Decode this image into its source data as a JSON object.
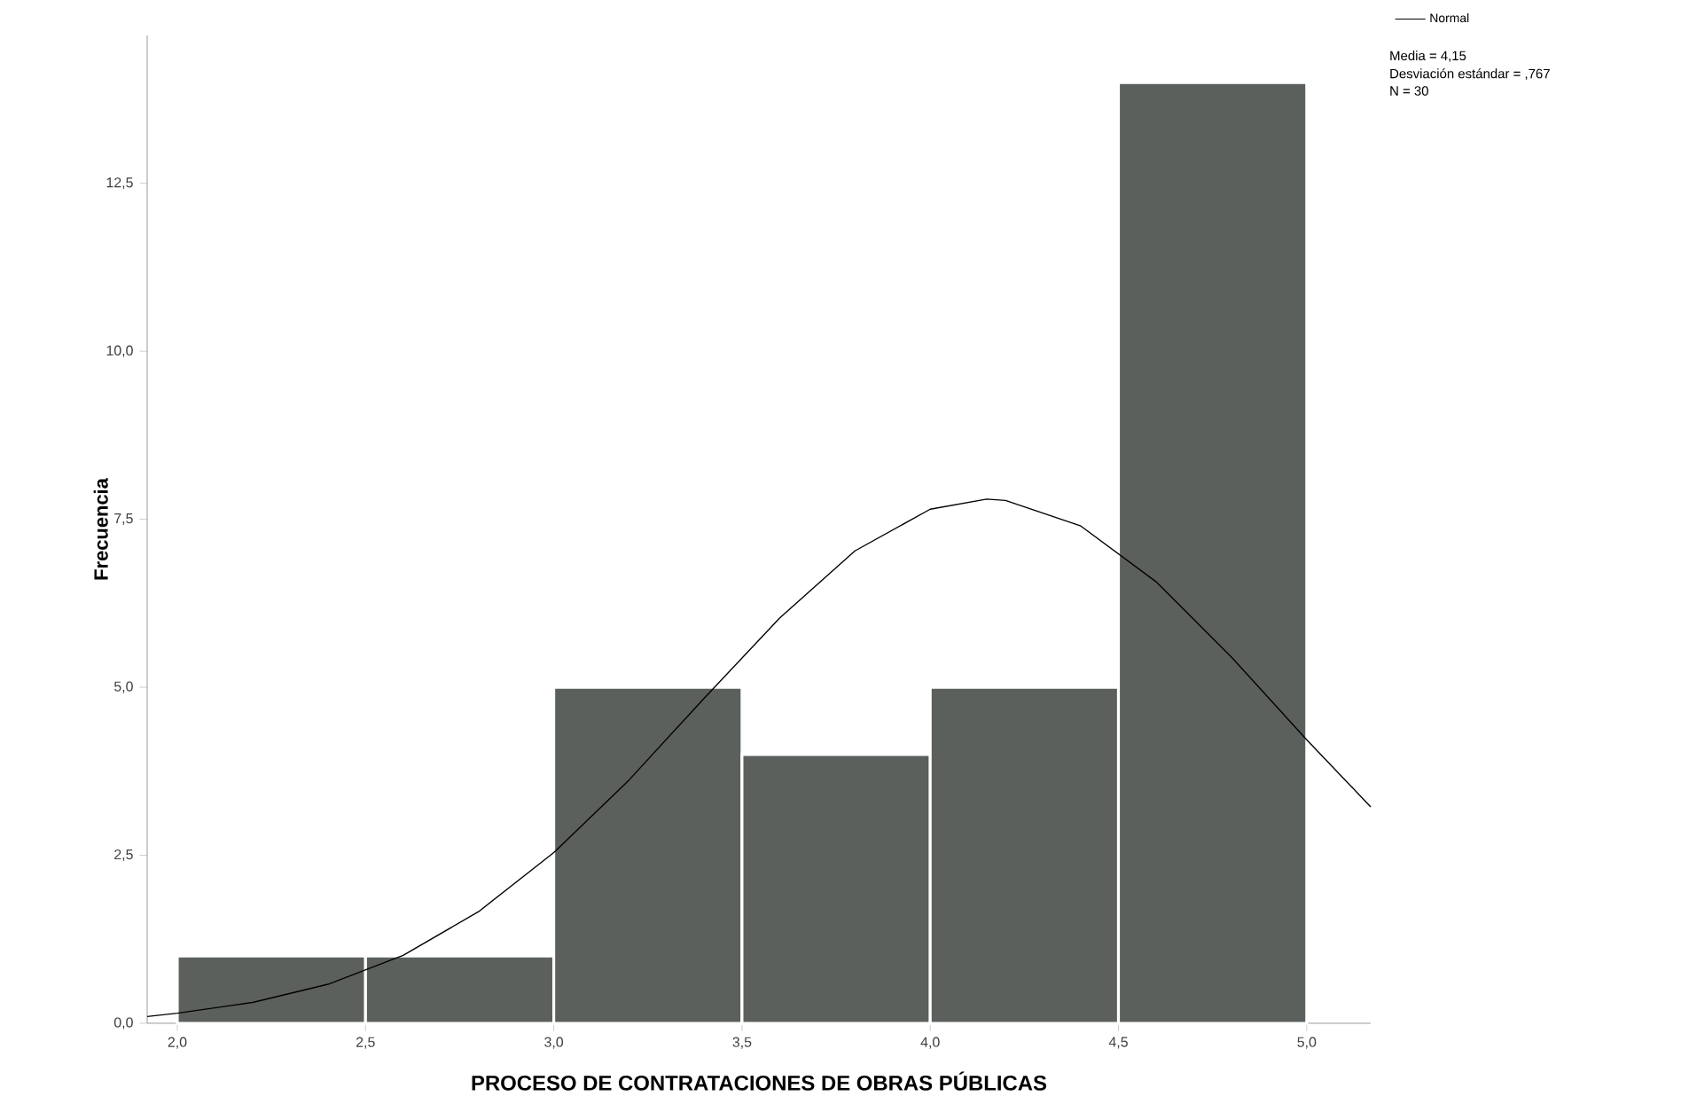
{
  "chart_data": {
    "type": "histogram",
    "xlabel": "PROCESO DE CONTRATACIONES DE OBRAS PÚBLICAS",
    "ylabel": "Frecuencia",
    "bins": [
      2.0,
      2.5,
      3.0,
      3.5,
      4.0,
      4.5,
      5.0
    ],
    "values": [
      1,
      1,
      5,
      4,
      5,
      14
    ],
    "color": "#5b605c",
    "series": [
      {
        "name": "Normal",
        "type": "line",
        "color": "#000000",
        "x": [
          1.92,
          2.0,
          2.2,
          2.4,
          2.6,
          2.8,
          3.0,
          3.2,
          3.4,
          3.6,
          3.8,
          4.0,
          4.15,
          4.2,
          4.4,
          4.6,
          4.8,
          5.0,
          5.17
        ],
        "values": [
          0.1,
          0.15,
          0.31,
          0.58,
          1.01,
          1.66,
          2.54,
          3.62,
          4.84,
          6.03,
          7.03,
          7.65,
          7.8,
          7.78,
          7.4,
          6.57,
          5.45,
          4.22,
          3.22
        ]
      }
    ],
    "xlim": [
      1.92,
      5.17
    ],
    "ylim": [
      0,
      14.7
    ],
    "xticks": [
      {
        "value": 2.0,
        "label": "2,0"
      },
      {
        "value": 2.5,
        "label": "2,5"
      },
      {
        "value": 3.0,
        "label": "3,0"
      },
      {
        "value": 3.5,
        "label": "3,5"
      },
      {
        "value": 4.0,
        "label": "4,0"
      },
      {
        "value": 4.5,
        "label": "4,5"
      },
      {
        "value": 5.0,
        "label": "5,0"
      }
    ],
    "yticks": [
      {
        "value": 0,
        "label": "0,0"
      },
      {
        "value": 2.5,
        "label": "2,5"
      },
      {
        "value": 5,
        "label": "5,0"
      },
      {
        "value": 7.5,
        "label": "7,5"
      },
      {
        "value": 10,
        "label": "10,0"
      },
      {
        "value": 12.5,
        "label": "12,5"
      }
    ],
    "legend": "top right",
    "grid": false,
    "annotations": [
      "Media = 4,15",
      "Desviación estándar = ,767",
      "N = 30"
    ]
  }
}
